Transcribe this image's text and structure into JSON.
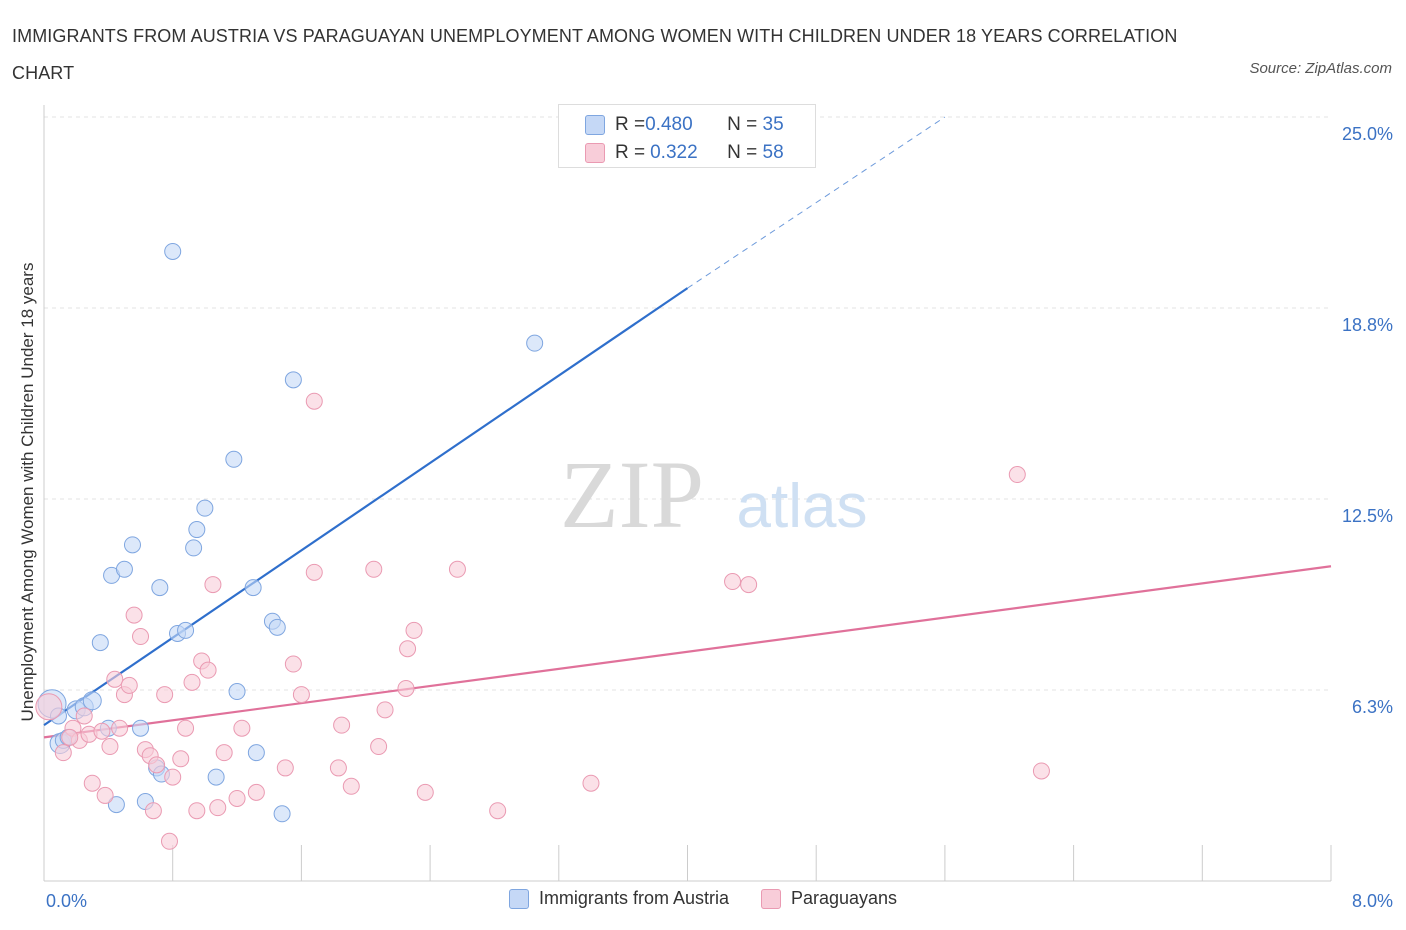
{
  "title": "IMMIGRANTS FROM AUSTRIA VS PARAGUAYAN UNEMPLOYMENT AMONG WOMEN WITH CHILDREN UNDER 18 YEARS CORRELATION CHART",
  "source": "Source: ZipAtlas.com",
  "watermark": {
    "zip": "ZIP",
    "atlas": "atlas"
  },
  "colors": {
    "blue_fill": "#c5d8f6",
    "blue_stroke": "#7fa6e0",
    "blue_line": "#2f6fcc",
    "pink_fill": "#f8cdd9",
    "pink_stroke": "#ea9ab2",
    "pink_line": "#e0719a",
    "grid": "#e3e3e3",
    "axis_label": "#3b72c4"
  },
  "stats": [
    {
      "r_label": "R = ",
      "r_value": "0.480",
      "n_label": "N = ",
      "n_value": "35",
      "series": "blue"
    },
    {
      "r_label": "R = ",
      "r_value": "0.322",
      "n_label": "N = ",
      "n_value": "58",
      "series": "pink"
    }
  ],
  "x_tick_labels": {
    "left": "0.0%",
    "right": "8.0%"
  },
  "chart_data": {
    "type": "scatter",
    "xlabel": "",
    "ylabel": "Unemployment Among Women with Children Under 18 years",
    "xlim": [
      0,
      8.0
    ],
    "ylim": [
      0,
      25.0
    ],
    "y_ticks": [
      {
        "value": 6.25,
        "label": "6.3%"
      },
      {
        "value": 12.5,
        "label": "12.5%"
      },
      {
        "value": 18.75,
        "label": "18.8%"
      },
      {
        "value": 25.0,
        "label": "25.0%"
      }
    ],
    "x_ticks": [
      0,
      0.8,
      1.6,
      2.4,
      3.2,
      4.0,
      4.8,
      5.6,
      6.4,
      7.2,
      8.0
    ],
    "grid": true,
    "legend": "bottom-center",
    "series": [
      {
        "name": "Immigrants from Austria",
        "color": "blue",
        "r": 0.48,
        "n": 35,
        "trend": {
          "x0": 0.0,
          "y0": 5.1,
          "x1": 4.0,
          "y1": 19.4,
          "dash_x1": 5.6,
          "dash_y1": 25.0
        },
        "points": [
          [
            0.05,
            5.8,
            14
          ],
          [
            0.1,
            4.5,
            10
          ],
          [
            0.12,
            4.6,
            8
          ],
          [
            0.15,
            4.7,
            8
          ],
          [
            0.2,
            5.6,
            9
          ],
          [
            0.25,
            5.7,
            9
          ],
          [
            0.3,
            5.9,
            9
          ],
          [
            0.35,
            7.8,
            8
          ],
          [
            0.4,
            5.0,
            8
          ],
          [
            0.42,
            10.0,
            8
          ],
          [
            0.45,
            2.5,
            8
          ],
          [
            0.5,
            10.2,
            8
          ],
          [
            0.55,
            11.0,
            8
          ],
          [
            0.6,
            5.0,
            8
          ],
          [
            0.63,
            2.6,
            8
          ],
          [
            0.7,
            3.7,
            8
          ],
          [
            0.72,
            9.6,
            8
          ],
          [
            0.73,
            3.5,
            8
          ],
          [
            0.8,
            20.6,
            8
          ],
          [
            0.83,
            8.1,
            8
          ],
          [
            0.88,
            8.2,
            8
          ],
          [
            0.93,
            10.9,
            8
          ],
          [
            0.95,
            11.5,
            8
          ],
          [
            1.0,
            12.2,
            8
          ],
          [
            1.07,
            3.4,
            8
          ],
          [
            1.18,
            13.8,
            8
          ],
          [
            1.2,
            6.2,
            8
          ],
          [
            1.3,
            9.6,
            8
          ],
          [
            1.32,
            4.2,
            8
          ],
          [
            1.42,
            8.5,
            8
          ],
          [
            1.45,
            8.3,
            8
          ],
          [
            1.48,
            2.2,
            8
          ],
          [
            1.55,
            16.4,
            8
          ],
          [
            3.05,
            17.6,
            8
          ],
          [
            0.09,
            5.4,
            8
          ]
        ]
      },
      {
        "name": "Paraguayans",
        "color": "pink",
        "r": 0.322,
        "n": 58,
        "trend": {
          "x0": 0.0,
          "y0": 4.7,
          "x1": 8.0,
          "y1": 10.3
        },
        "points": [
          [
            0.03,
            5.7,
            13
          ],
          [
            0.12,
            4.2,
            8
          ],
          [
            0.18,
            5.0,
            8
          ],
          [
            0.22,
            4.6,
            8
          ],
          [
            0.25,
            5.4,
            8
          ],
          [
            0.28,
            4.8,
            8
          ],
          [
            0.3,
            3.2,
            8
          ],
          [
            0.36,
            4.9,
            8
          ],
          [
            0.38,
            2.8,
            8
          ],
          [
            0.41,
            4.4,
            8
          ],
          [
            0.44,
            6.6,
            8
          ],
          [
            0.47,
            5.0,
            8
          ],
          [
            0.5,
            6.1,
            8
          ],
          [
            0.53,
            6.4,
            8
          ],
          [
            0.56,
            8.7,
            8
          ],
          [
            0.6,
            8.0,
            8
          ],
          [
            0.63,
            4.3,
            8
          ],
          [
            0.66,
            4.1,
            8
          ],
          [
            0.68,
            2.3,
            8
          ],
          [
            0.7,
            3.8,
            8
          ],
          [
            0.75,
            6.1,
            8
          ],
          [
            0.78,
            1.3,
            8
          ],
          [
            0.8,
            3.4,
            8
          ],
          [
            0.85,
            4.0,
            8
          ],
          [
            0.88,
            5.0,
            8
          ],
          [
            0.92,
            6.5,
            8
          ],
          [
            0.95,
            2.3,
            8
          ],
          [
            0.98,
            7.2,
            8
          ],
          [
            1.02,
            6.9,
            8
          ],
          [
            1.05,
            9.7,
            8
          ],
          [
            1.08,
            2.4,
            8
          ],
          [
            1.12,
            4.2,
            8
          ],
          [
            1.2,
            2.7,
            8
          ],
          [
            1.23,
            5.0,
            8
          ],
          [
            1.32,
            2.9,
            8
          ],
          [
            1.5,
            3.7,
            8
          ],
          [
            1.55,
            7.1,
            8
          ],
          [
            1.6,
            6.1,
            8
          ],
          [
            1.68,
            10.1,
            8
          ],
          [
            1.68,
            15.7,
            8
          ],
          [
            1.83,
            3.7,
            8
          ],
          [
            1.85,
            5.1,
            8
          ],
          [
            1.91,
            3.1,
            8
          ],
          [
            2.05,
            10.2,
            8
          ],
          [
            2.08,
            4.4,
            8
          ],
          [
            2.12,
            5.6,
            8
          ],
          [
            2.25,
            6.3,
            8
          ],
          [
            2.26,
            7.6,
            8
          ],
          [
            2.3,
            8.2,
            8
          ],
          [
            2.37,
            2.9,
            8
          ],
          [
            2.57,
            10.2,
            8
          ],
          [
            2.82,
            2.3,
            8
          ],
          [
            3.4,
            3.2,
            8
          ],
          [
            4.28,
            9.8,
            8
          ],
          [
            4.38,
            9.7,
            8
          ],
          [
            6.05,
            13.3,
            8
          ],
          [
            6.2,
            3.6,
            8
          ],
          [
            0.16,
            4.7,
            8
          ]
        ]
      }
    ]
  }
}
